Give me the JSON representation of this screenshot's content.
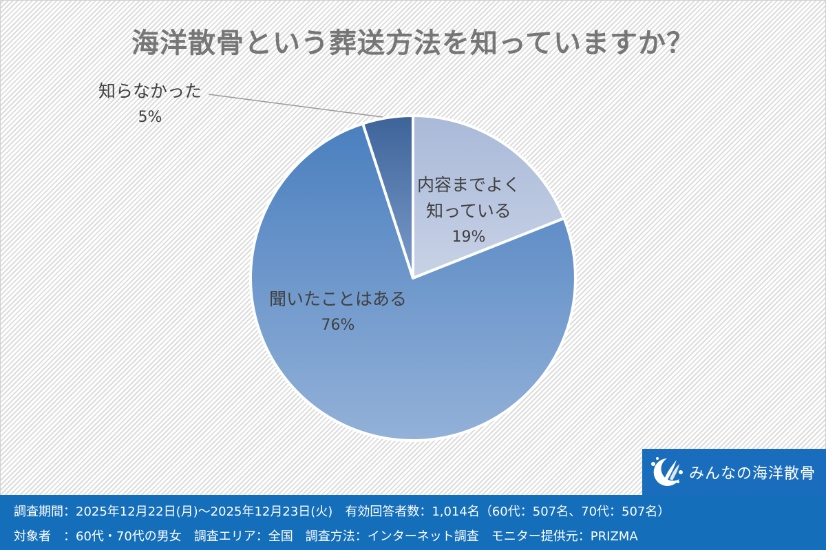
{
  "title": "海洋散骨という葬送方法を知っていますか？",
  "chart_data": {
    "type": "pie",
    "title": "海洋散骨という葬送方法を知っていますか？",
    "categories": [
      "内容までよく知っている",
      "聞いたことはある",
      "知らなかった"
    ],
    "values": [
      19,
      76,
      5
    ],
    "unit": "%",
    "start_angle_deg": 0,
    "direction": "clockwise",
    "colors": [
      "#b4c3de",
      "#6a95cc",
      "#44699e"
    ],
    "legend": "none (data labels on slices)"
  },
  "labels": {
    "known_well": {
      "text": "内容までよく",
      "text2": "知っている",
      "pct": "19%"
    },
    "heard": {
      "text": "聞いたことはある",
      "pct": "76%"
    },
    "unknown": {
      "text": "知らなかった",
      "pct": "5%"
    }
  },
  "logo": {
    "name": "みんなの海洋散骨",
    "icon": "wave-moon-logo-icon"
  },
  "footer": {
    "line1": "調査期間：2025年12月22日(月)～2025年12月23日(火)　有効回答者数：1,014名（60代：507名、70代：507名）",
    "line2": "対象者　：60代・70代の男女　調査エリア：全国　調査方法：インターネット調査　モニター提供元：PRIZMA"
  },
  "colors": {
    "title": "#767676",
    "footer_bg": "#146eb9",
    "logo_bg": "#1a6dbd"
  }
}
